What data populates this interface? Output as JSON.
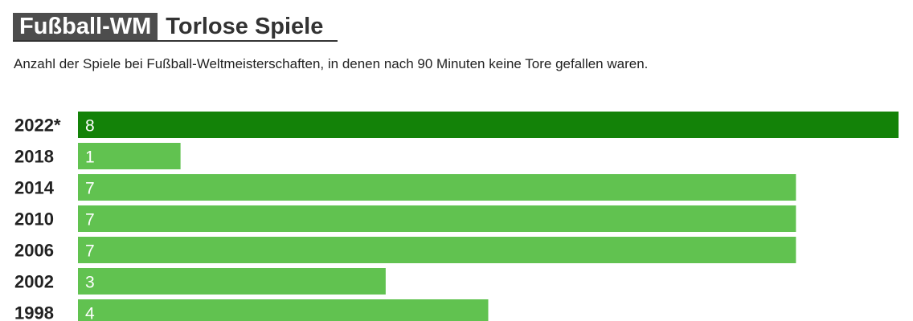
{
  "header": {
    "kicker": "Fußball-WM",
    "title": "Torlose Spiele",
    "subtitle": "Anzahl der Spiele bei Fußball-Weltmeisterschaften, in denen nach 90 Minuten keine Tore gefallen waren."
  },
  "colors": {
    "highlight": "#138208",
    "bar": "#61c250"
  },
  "chart_data": {
    "type": "bar",
    "orientation": "horizontal",
    "title": "Torlose Spiele",
    "subtitle": "Anzahl der Spiele bei Fußball-Weltmeisterschaften, in denen nach 90 Minuten keine Tore gefallen waren.",
    "categories": [
      "2022*",
      "2018",
      "2014",
      "2010",
      "2006",
      "2002",
      "1998"
    ],
    "values": [
      8,
      1,
      7,
      7,
      7,
      3,
      4
    ],
    "highlighted_category": "2022*",
    "xlim": [
      0,
      8
    ],
    "grid": false,
    "data_labels": true
  }
}
